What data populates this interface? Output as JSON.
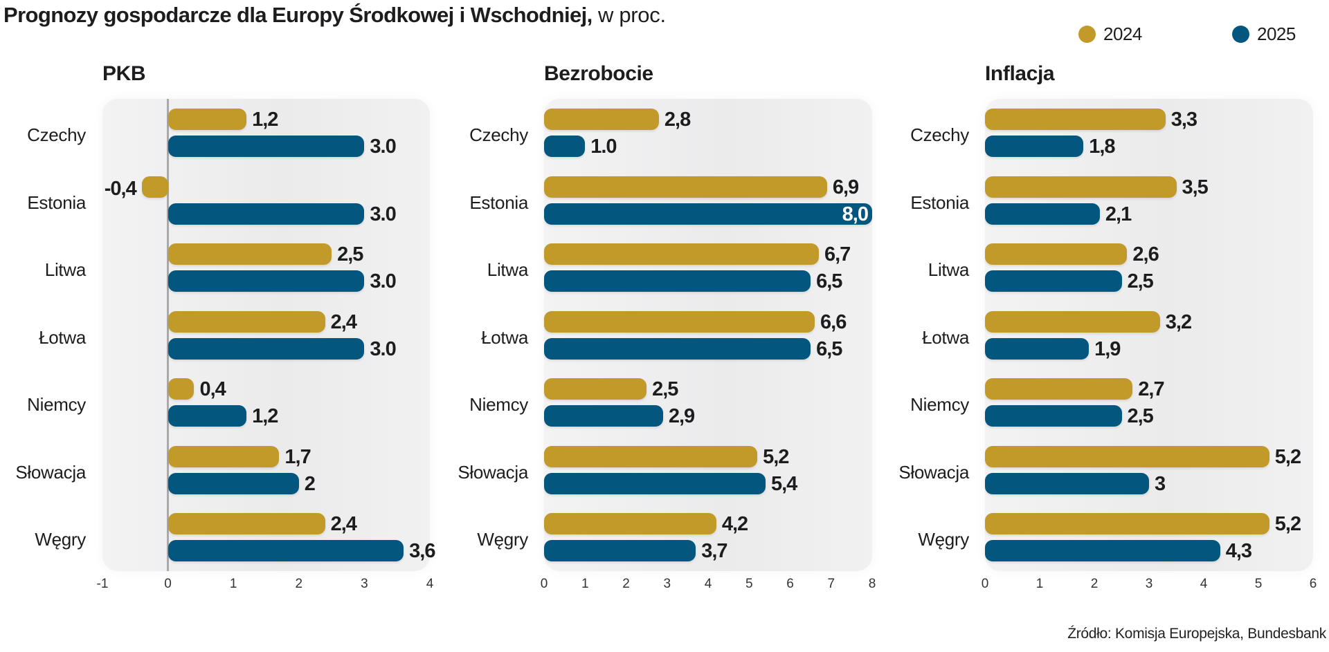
{
  "title": {
    "bold": "Prognozy gospodarcze dla Europy Środkowej i Wschodniej,",
    "regular": " w proc."
  },
  "legend": [
    {
      "label": "2024",
      "color": "#C19A29"
    },
    {
      "label": "2025",
      "color": "#03577E"
    }
  ],
  "source": "Źródło: Komisja Europejska, Bundesbank",
  "chart_data": [
    {
      "type": "bar",
      "orientation": "horizontal",
      "title": "PKB",
      "categories": [
        "Czechy",
        "Estonia",
        "Litwa",
        "Łotwa",
        "Niemcy",
        "Słowacja",
        "Węgry"
      ],
      "series": [
        {
          "name": "2024",
          "color": "#C19A29",
          "values": [
            1.2,
            -0.4,
            2.5,
            2.4,
            0.4,
            1.7,
            2.4
          ],
          "labels": [
            "1,2",
            "-0,4",
            "2,5",
            "2,4",
            "0,4",
            "1,7",
            "2,4"
          ]
        },
        {
          "name": "2025",
          "color": "#03577E",
          "values": [
            3.0,
            3.0,
            3.0,
            3.0,
            1.2,
            2.0,
            3.6
          ],
          "labels": [
            "3.0",
            "3.0",
            "3.0",
            "3.0",
            "1,2",
            "2",
            "3,6"
          ]
        }
      ],
      "xlim": [
        -1,
        4
      ],
      "xticks": [
        "-1",
        "0",
        "1",
        "2",
        "3",
        "4"
      ],
      "zero_line": true
    },
    {
      "type": "bar",
      "orientation": "horizontal",
      "title": "Bezrobocie",
      "categories": [
        "Czechy",
        "Estonia",
        "Litwa",
        "Łotwa",
        "Niemcy",
        "Słowacja",
        "Węgry"
      ],
      "series": [
        {
          "name": "2024",
          "color": "#C19A29",
          "values": [
            2.8,
            6.9,
            6.7,
            6.6,
            2.5,
            5.2,
            4.2
          ],
          "labels": [
            "2,8",
            "6,9",
            "6,7",
            "6,6",
            "2,5",
            "5,2",
            "4,2"
          ]
        },
        {
          "name": "2025",
          "color": "#03577E",
          "values": [
            1.0,
            8.0,
            6.5,
            6.5,
            2.9,
            5.4,
            3.7
          ],
          "labels": [
            "1.0",
            "8,0",
            "6,5",
            "6,5",
            "2,9",
            "5,4",
            "3,7"
          ]
        }
      ],
      "xlim": [
        0,
        8
      ],
      "xticks": [
        "0",
        "1",
        "2",
        "3",
        "4",
        "5",
        "6",
        "7",
        "8"
      ],
      "zero_line": false
    },
    {
      "type": "bar",
      "orientation": "horizontal",
      "title": "Inflacja",
      "categories": [
        "Czechy",
        "Estonia",
        "Litwa",
        "Łotwa",
        "Niemcy",
        "Słowacja",
        "Węgry"
      ],
      "series": [
        {
          "name": "2024",
          "color": "#C19A29",
          "values": [
            3.3,
            3.5,
            2.6,
            3.2,
            2.7,
            5.2,
            5.2
          ],
          "labels": [
            "3,3",
            "3,5",
            "2,6",
            "3,2",
            "2,7",
            "5,2",
            "5,2"
          ]
        },
        {
          "name": "2025",
          "color": "#03577E",
          "values": [
            1.8,
            2.1,
            2.5,
            1.9,
            2.5,
            3.0,
            4.3
          ],
          "labels": [
            "1,8",
            "2,1",
            "2,5",
            "1,9",
            "2,5",
            "3",
            "4,3"
          ]
        }
      ],
      "xlim": [
        0,
        6
      ],
      "xticks": [
        "0",
        "1",
        "2",
        "3",
        "4",
        "5",
        "6"
      ],
      "zero_line": false
    }
  ]
}
